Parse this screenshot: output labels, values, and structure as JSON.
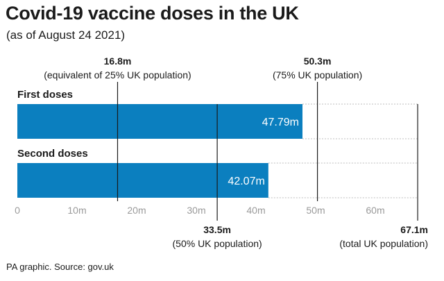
{
  "title": "Covid-19 vaccine doses in the UK",
  "subtitle": "(as of August 24 2021)",
  "source": "PA graphic. Source: gov.uk",
  "colors": {
    "bar": "#0b7fbf",
    "text": "#1a1a1a",
    "axis_tick": "#9a9a9a",
    "reference_line": "#1a1a1a",
    "dotted": "#bcbcbc"
  },
  "chart_data": {
    "type": "bar",
    "orientation": "horizontal",
    "categories": [
      "First doses",
      "Second doses"
    ],
    "values": [
      47.79,
      42.07
    ],
    "value_labels": [
      "47.79m",
      "42.07m"
    ],
    "xlim": [
      0,
      67.1
    ],
    "xticks": [
      0,
      10,
      20,
      30,
      40,
      50,
      60
    ],
    "xtick_labels": [
      "0",
      "10m",
      "20m",
      "30m",
      "40m",
      "50m",
      "60m"
    ],
    "reference_lines": [
      {
        "value": 16.8,
        "label": "16.8m",
        "sublabel": "(equivalent of 25% UK population)",
        "label_position": "top"
      },
      {
        "value": 50.3,
        "label": "50.3m",
        "sublabel": "(75% UK population)",
        "label_position": "top"
      },
      {
        "value": 33.5,
        "label": "33.5m",
        "sublabel": "(50% UK population)",
        "label_position": "bottom"
      },
      {
        "value": 67.1,
        "label": "67.1m",
        "sublabel": "(total UK population)",
        "label_position": "bottom"
      }
    ],
    "grid": false,
    "legend": "none"
  }
}
